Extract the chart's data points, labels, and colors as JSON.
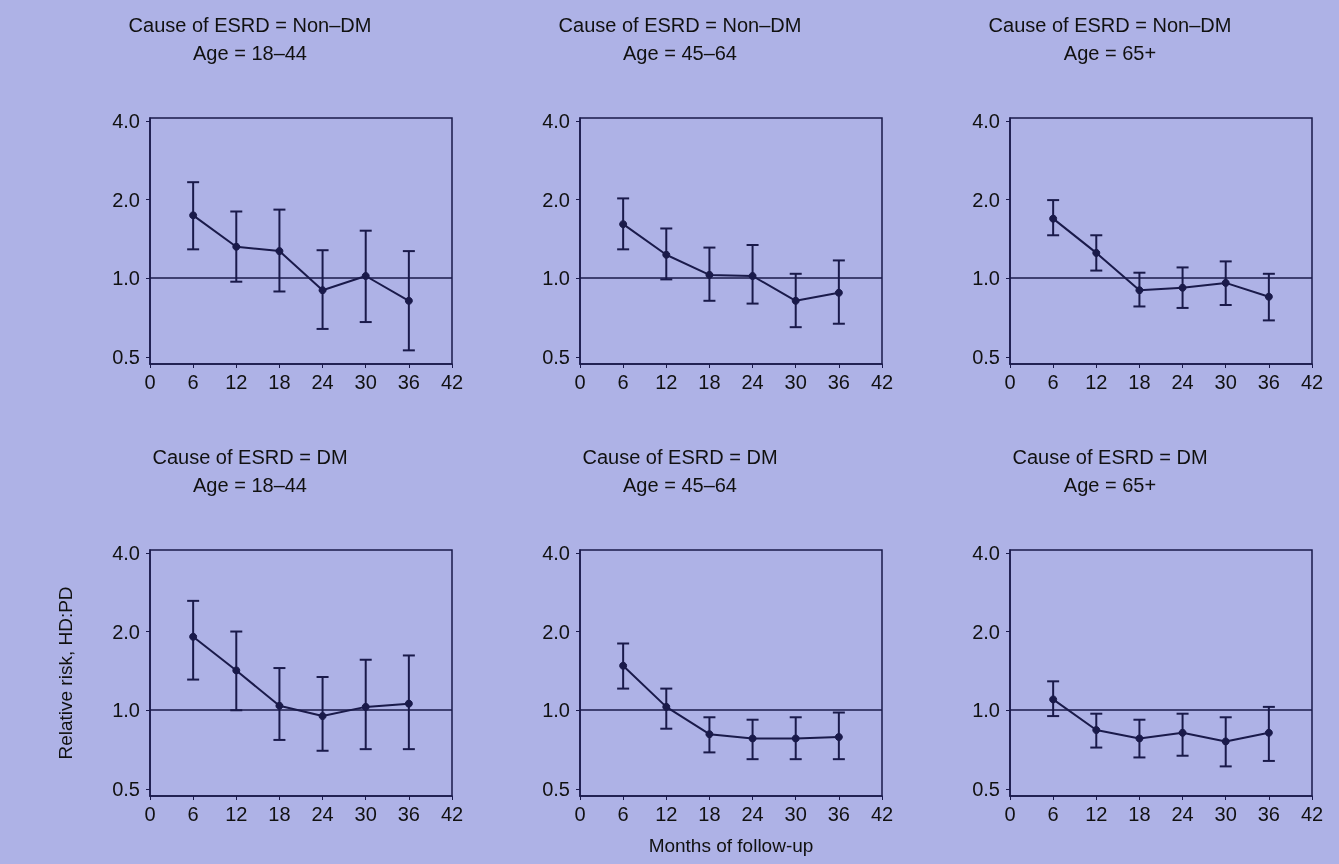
{
  "chart_data": [
    {
      "type": "line",
      "title": "Cause of ESRD = Non–DM",
      "subtitle": "Age = 18–44",
      "x": [
        6,
        12,
        18,
        24,
        30,
        36
      ],
      "xlim": [
        0,
        42
      ],
      "xticks": [
        0,
        6,
        12,
        18,
        24,
        30,
        36,
        42
      ],
      "ylim": [
        0.47,
        4.1
      ],
      "yticks": [
        {
          "value": 0.5,
          "label": "0.5"
        },
        {
          "value": 1,
          "label": "1.0"
        },
        {
          "value": 2,
          "label": "2.0"
        },
        {
          "value": 4,
          "label": "4.0"
        }
      ],
      "log": "y",
      "grid": false,
      "marker": "circle",
      "line_style": "solid",
      "ref_lines": [
        {
          "axis": "y",
          "value": 1
        }
      ],
      "series": [
        {
          "color": "#1a1a4a",
          "values": [
            1.74,
            1.32,
            1.27,
            0.9,
            1.02,
            0.82
          ],
          "errors": [
            [
              1.29,
              2.33
            ],
            [
              0.97,
              1.8
            ],
            [
              0.89,
              1.83
            ],
            [
              0.64,
              1.28
            ],
            [
              0.68,
              1.52
            ],
            [
              0.53,
              1.27
            ]
          ]
        }
      ]
    },
    {
      "type": "line",
      "title": "Cause of ESRD = Non–DM",
      "subtitle": "Age = 45–64",
      "x": [
        6,
        12,
        18,
        24,
        30,
        36
      ],
      "xlim": [
        0,
        42
      ],
      "xticks": [
        0,
        6,
        12,
        18,
        24,
        30,
        36,
        42
      ],
      "ylim": [
        0.47,
        4.1
      ],
      "yticks": [
        {
          "value": 0.5,
          "label": "0.5"
        },
        {
          "value": 1,
          "label": "1.0"
        },
        {
          "value": 2,
          "label": "2.0"
        },
        {
          "value": 4,
          "label": "4.0"
        }
      ],
      "log": "y",
      "grid": false,
      "marker": "circle",
      "line_style": "solid",
      "ref_lines": [
        {
          "axis": "y",
          "value": 1
        }
      ],
      "series": [
        {
          "color": "#1a1a4a",
          "values": [
            1.61,
            1.23,
            1.03,
            1.02,
            0.82,
            0.88
          ],
          "errors": [
            [
              1.29,
              2.02
            ],
            [
              0.99,
              1.55
            ],
            [
              0.82,
              1.31
            ],
            [
              0.8,
              1.34
            ],
            [
              0.65,
              1.04
            ],
            [
              0.67,
              1.17
            ]
          ]
        }
      ]
    },
    {
      "type": "line",
      "title": "Cause of ESRD = Non–DM",
      "subtitle": "Age = 65+",
      "x": [
        6,
        12,
        18,
        24,
        30,
        36
      ],
      "xlim": [
        0,
        42
      ],
      "xticks": [
        0,
        6,
        12,
        18,
        24,
        30,
        36,
        42
      ],
      "ylim": [
        0.47,
        4.1
      ],
      "yticks": [
        {
          "value": 0.5,
          "label": "0.5"
        },
        {
          "value": 1,
          "label": "1.0"
        },
        {
          "value": 2,
          "label": "2.0"
        },
        {
          "value": 4,
          "label": "4.0"
        }
      ],
      "log": "y",
      "grid": false,
      "marker": "circle",
      "line_style": "solid",
      "ref_lines": [
        {
          "axis": "y",
          "value": 1
        }
      ],
      "series": [
        {
          "color": "#1a1a4a",
          "values": [
            1.69,
            1.25,
            0.9,
            0.92,
            0.96,
            0.85
          ],
          "errors": [
            [
              1.46,
              1.99
            ],
            [
              1.07,
              1.46
            ],
            [
              0.78,
              1.05
            ],
            [
              0.77,
              1.1
            ],
            [
              0.79,
              1.16
            ],
            [
              0.69,
              1.04
            ]
          ]
        }
      ]
    },
    {
      "type": "line",
      "title": "Cause of ESRD = DM",
      "subtitle": "Age = 18–44",
      "ylabel": "Relative risk, HD:PD",
      "x": [
        6,
        12,
        18,
        24,
        30,
        36
      ],
      "xlim": [
        0,
        42
      ],
      "xticks": [
        0,
        6,
        12,
        18,
        24,
        30,
        36,
        42
      ],
      "ylim": [
        0.47,
        4.1
      ],
      "yticks": [
        {
          "value": 0.5,
          "label": "0.5"
        },
        {
          "value": 1,
          "label": "1.0"
        },
        {
          "value": 2,
          "label": "2.0"
        },
        {
          "value": 4,
          "label": "4.0"
        }
      ],
      "log": "y",
      "grid": false,
      "marker": "circle",
      "line_style": "solid",
      "ref_lines": [
        {
          "axis": "y",
          "value": 1
        }
      ],
      "series": [
        {
          "color": "#1a1a4a",
          "values": [
            1.91,
            1.42,
            1.04,
            0.95,
            1.03,
            1.06
          ],
          "errors": [
            [
              1.31,
              2.62
            ],
            [
              1.0,
              2.0
            ],
            [
              0.77,
              1.45
            ],
            [
              0.7,
              1.34
            ],
            [
              0.71,
              1.56
            ],
            [
              0.71,
              1.62
            ]
          ]
        }
      ]
    },
    {
      "type": "line",
      "title": "Cause of ESRD = DM",
      "subtitle": "Age = 45–64",
      "xlabel": "Months of follow-up",
      "x": [
        6,
        12,
        18,
        24,
        30,
        36
      ],
      "xlim": [
        0,
        42
      ],
      "xticks": [
        0,
        6,
        12,
        18,
        24,
        30,
        36,
        42
      ],
      "ylim": [
        0.47,
        4.1
      ],
      "yticks": [
        {
          "value": 0.5,
          "label": "0.5"
        },
        {
          "value": 1,
          "label": "1.0"
        },
        {
          "value": 2,
          "label": "2.0"
        },
        {
          "value": 4,
          "label": "4.0"
        }
      ],
      "log": "y",
      "grid": false,
      "marker": "circle",
      "line_style": "solid",
      "ref_lines": [
        {
          "axis": "y",
          "value": 1
        }
      ],
      "series": [
        {
          "color": "#1a1a4a",
          "values": [
            1.48,
            1.03,
            0.81,
            0.78,
            0.78,
            0.79
          ],
          "errors": [
            [
              1.21,
              1.8
            ],
            [
              0.85,
              1.21
            ],
            [
              0.69,
              0.94
            ],
            [
              0.65,
              0.92
            ],
            [
              0.65,
              0.94
            ],
            [
              0.65,
              0.98
            ]
          ]
        }
      ]
    },
    {
      "type": "line",
      "title": "Cause of ESRD = DM",
      "subtitle": "Age = 65+",
      "x": [
        6,
        12,
        18,
        24,
        30,
        36
      ],
      "xlim": [
        0,
        42
      ],
      "xticks": [
        0,
        6,
        12,
        18,
        24,
        30,
        36,
        42
      ],
      "ylim": [
        0.47,
        4.1
      ],
      "yticks": [
        {
          "value": 0.5,
          "label": "0.5"
        },
        {
          "value": 1,
          "label": "1.0"
        },
        {
          "value": 2,
          "label": "2.0"
        },
        {
          "value": 4,
          "label": "4.0"
        }
      ],
      "log": "y",
      "grid": false,
      "marker": "circle",
      "line_style": "solid",
      "ref_lines": [
        {
          "axis": "y",
          "value": 1
        }
      ],
      "series": [
        {
          "color": "#1a1a4a",
          "values": [
            1.1,
            0.84,
            0.78,
            0.82,
            0.76,
            0.82
          ],
          "errors": [
            [
              0.95,
              1.29
            ],
            [
              0.72,
              0.97
            ],
            [
              0.66,
              0.92
            ],
            [
              0.67,
              0.97
            ],
            [
              0.61,
              0.94
            ],
            [
              0.64,
              1.03
            ]
          ]
        }
      ]
    }
  ]
}
